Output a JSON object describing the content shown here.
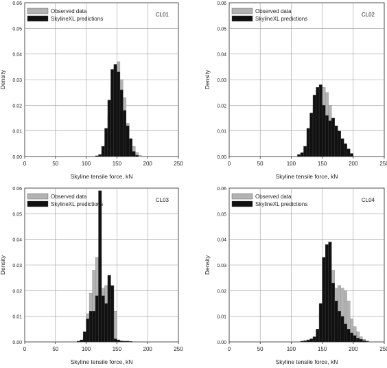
{
  "colors": {
    "observed": "#b3b3b3",
    "predicted": "#111111",
    "grid": "#999999",
    "bar_edge": "#555555"
  },
  "chart_data": [
    {
      "type": "bar",
      "panel": "CL01",
      "xlabel": "Skyline tensile force, kN",
      "ylabel": "Density",
      "xlim": [
        0,
        250
      ],
      "ylim": [
        0,
        0.06
      ],
      "xticks": [
        "0",
        "50",
        "100",
        "150",
        "200",
        "250"
      ],
      "yticks": [
        "0.00",
        "0.01",
        "0.02",
        "0.03",
        "0.04",
        "0.05",
        "0.06"
      ],
      "grid": true,
      "legend_position": "top-left",
      "bin_width": 5,
      "series": [
        {
          "name": "Observed data",
          "x": [
            115,
            120,
            125,
            130,
            135,
            140,
            145,
            150,
            155,
            160,
            165,
            170,
            175,
            180,
            185
          ],
          "values": [
            0,
            0.0005,
            0.002,
            0.005,
            0.016,
            0.028,
            0.035,
            0.037,
            0.03,
            0.023,
            0.013,
            0.006,
            0.004,
            0.0015,
            0.0005
          ]
        },
        {
          "name": "SkylineXL predictions",
          "x": [
            115,
            120,
            125,
            130,
            135,
            140,
            145,
            150,
            155,
            160,
            165,
            170,
            175,
            180,
            185
          ],
          "values": [
            0.0003,
            0.0008,
            0.004,
            0.011,
            0.022,
            0.034,
            0.036,
            0.033,
            0.026,
            0.018,
            0.012,
            0.007,
            0.002,
            0.0005,
            0
          ]
        }
      ]
    },
    {
      "type": "bar",
      "panel": "CL02",
      "xlabel": "Skyline tensile force, kN",
      "ylabel": "Density",
      "xlim": [
        0,
        250
      ],
      "ylim": [
        0,
        0.06
      ],
      "xticks": [
        "0",
        "50",
        "100",
        "150",
        "200",
        "250"
      ],
      "yticks": [
        "0.00",
        "0.01",
        "0.02",
        "0.03",
        "0.04",
        "0.05",
        "0.06"
      ],
      "grid": true,
      "legend_position": "top-left",
      "bin_width": 5,
      "series": [
        {
          "name": "Observed data",
          "x": [
            110,
            115,
            120,
            125,
            130,
            135,
            140,
            145,
            150,
            155,
            160,
            165,
            170,
            175,
            180,
            185,
            190,
            195
          ],
          "values": [
            0,
            0.0008,
            0.002,
            0.006,
            0.012,
            0.02,
            0.025,
            0.028,
            0.027,
            0.025,
            0.02,
            0.015,
            0.011,
            0.006,
            0.0025,
            0.0012,
            0.0005,
            0
          ]
        },
        {
          "name": "SkylineXL predictions",
          "x": [
            110,
            115,
            120,
            125,
            130,
            135,
            140,
            145,
            150,
            155,
            160,
            165,
            170,
            175,
            180,
            185,
            190,
            195
          ],
          "values": [
            0.0008,
            0.0015,
            0.004,
            0.011,
            0.017,
            0.024,
            0.027,
            0.028,
            0.02,
            0.016,
            0.014,
            0.015,
            0.012,
            0.01,
            0.007,
            0.005,
            0.003,
            0.0012
          ]
        }
      ]
    },
    {
      "type": "bar",
      "panel": "CL03",
      "xlabel": "Skyline tensile force, kN",
      "ylabel": "Density",
      "xlim": [
        0,
        250
      ],
      "ylim": [
        0,
        0.06
      ],
      "xticks": [
        "0",
        "50",
        "100",
        "150",
        "200",
        "250"
      ],
      "yticks": [
        "0.00",
        "0.01",
        "0.02",
        "0.03",
        "0.04",
        "0.05",
        "0.06"
      ],
      "grid": true,
      "legend_position": "top-left",
      "bin_width": 5,
      "series": [
        {
          "name": "Observed data",
          "x": [
            85,
            90,
            95,
            100,
            105,
            110,
            115,
            120,
            125,
            130,
            135,
            140,
            145,
            150,
            155,
            160,
            165,
            170
          ],
          "values": [
            0,
            0.0005,
            0.002,
            0.011,
            0.019,
            0.028,
            0.033,
            0.033,
            0.021,
            0.022,
            0.023,
            0.02,
            0.012,
            0.0005,
            0,
            0,
            0,
            0
          ]
        },
        {
          "name": "SkylineXL predictions",
          "x": [
            85,
            90,
            95,
            100,
            105,
            110,
            115,
            120,
            125,
            130,
            135,
            140,
            145,
            150,
            155,
            160,
            165,
            170
          ],
          "values": [
            0.0003,
            0.0008,
            0.004,
            0.009,
            0.012,
            0.012,
            0.018,
            0.059,
            0.018,
            0.015,
            0.026,
            0.022,
            0.0012,
            0.0008,
            0.0004,
            0.0003,
            0.0003,
            0.0002
          ]
        }
      ]
    },
    {
      "type": "bar",
      "panel": "CL04",
      "xlabel": "Skyline tensile force, kN",
      "ylabel": "Density",
      "xlim": [
        0,
        250
      ],
      "ylim": [
        0,
        0.06
      ],
      "xticks": [
        "0",
        "50",
        "100",
        "150",
        "200",
        "250"
      ],
      "yticks": [
        "0.00",
        "0.01",
        "0.02",
        "0.03",
        "0.04",
        "0.05",
        "0.06"
      ],
      "grid": true,
      "legend_position": "top-left",
      "bin_width": 5,
      "series": [
        {
          "name": "Observed data",
          "x": [
            115,
            120,
            125,
            130,
            135,
            140,
            145,
            150,
            155,
            160,
            165,
            170,
            175,
            180,
            185,
            190,
            195,
            200,
            205,
            210,
            215,
            220
          ],
          "values": [
            0,
            0.0003,
            0.0005,
            0.001,
            0.002,
            0.004,
            0.011,
            0.021,
            0.031,
            0.034,
            0.028,
            0.021,
            0.022,
            0.021,
            0.02,
            0.016,
            0.009,
            0.006,
            0.004,
            0.002,
            0.001,
            0.0005
          ]
        },
        {
          "name": "SkylineXL predictions",
          "x": [
            115,
            120,
            125,
            130,
            135,
            140,
            145,
            150,
            155,
            160,
            165,
            170,
            175,
            180,
            185,
            190,
            195,
            200,
            205,
            210,
            215,
            220
          ],
          "values": [
            0.0003,
            0.0005,
            0.0008,
            0.0012,
            0.002,
            0.005,
            0.015,
            0.033,
            0.038,
            0.039,
            0.023,
            0.016,
            0.012,
            0.01,
            0.007,
            0.005,
            0.0035,
            0.0025,
            0.0015,
            0.001,
            0.0005,
            0.0002
          ]
        }
      ]
    }
  ]
}
